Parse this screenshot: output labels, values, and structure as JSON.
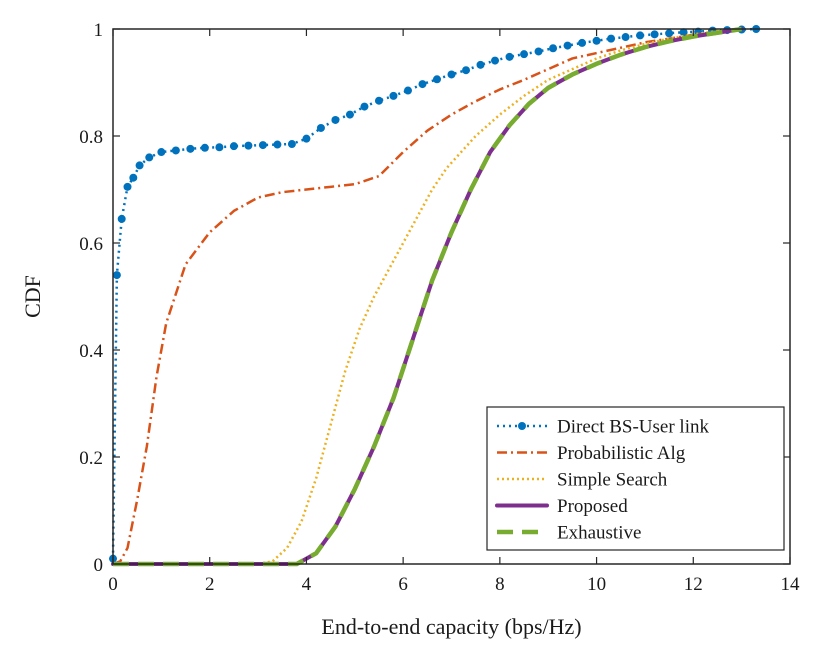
{
  "chart_data": {
    "type": "line",
    "title": "",
    "xlabel": "End-to-end capacity (bps/Hz)",
    "ylabel": "CDF",
    "xlim": [
      0,
      14
    ],
    "ylim": [
      0,
      1
    ],
    "xticks": [
      0,
      2,
      4,
      6,
      8,
      10,
      12,
      14
    ],
    "yticks": [
      0,
      0.2,
      0.4,
      0.6,
      0.8,
      1
    ],
    "xtick_labels": [
      "0",
      "2",
      "4",
      "6",
      "8",
      "10",
      "12",
      "14"
    ],
    "ytick_labels": [
      "0",
      "0.2",
      "0.4",
      "0.6",
      "0.8",
      "1"
    ],
    "grid": false,
    "legend_position": "bottom-right",
    "series": [
      {
        "name": "Direct BS-User link",
        "color": "#0072BD",
        "style": "dotted-markers",
        "x": [
          0,
          0.08,
          0.18,
          0.3,
          0.42,
          0.55,
          0.75,
          1.0,
          1.3,
          1.6,
          1.9,
          2.2,
          2.5,
          2.8,
          3.1,
          3.4,
          3.7,
          4.0,
          4.3,
          4.6,
          4.9,
          5.2,
          5.5,
          5.8,
          6.1,
          6.4,
          6.7,
          7.0,
          7.3,
          7.6,
          7.9,
          8.2,
          8.5,
          8.8,
          9.1,
          9.4,
          9.7,
          10.0,
          10.3,
          10.6,
          10.9,
          11.2,
          11.5,
          11.8,
          12.1,
          12.4,
          12.7,
          13.0,
          13.3
        ],
        "y": [
          0.01,
          0.54,
          0.645,
          0.705,
          0.722,
          0.745,
          0.76,
          0.77,
          0.773,
          0.776,
          0.778,
          0.779,
          0.781,
          0.782,
          0.783,
          0.784,
          0.785,
          0.795,
          0.815,
          0.83,
          0.84,
          0.855,
          0.866,
          0.875,
          0.885,
          0.897,
          0.906,
          0.915,
          0.923,
          0.933,
          0.941,
          0.948,
          0.953,
          0.958,
          0.964,
          0.969,
          0.974,
          0.978,
          0.982,
          0.985,
          0.988,
          0.99,
          0.992,
          0.994,
          0.995,
          0.997,
          0.998,
          0.999,
          1.0
        ]
      },
      {
        "name": "Probabilistic Alg",
        "color": "#D95319",
        "style": "dash-dot",
        "x": [
          0,
          0.15,
          0.3,
          0.5,
          0.7,
          0.9,
          1.1,
          1.5,
          2.0,
          2.5,
          3.0,
          3.5,
          4.0,
          4.5,
          5.0,
          5.5,
          6.0,
          6.5,
          7.0,
          7.5,
          8.0,
          8.5,
          9.0,
          9.5,
          10.0,
          10.5,
          11.0,
          11.5,
          12.0,
          12.5,
          13.0
        ],
        "y": [
          0,
          0.005,
          0.03,
          0.12,
          0.22,
          0.35,
          0.45,
          0.56,
          0.62,
          0.66,
          0.685,
          0.695,
          0.7,
          0.705,
          0.71,
          0.725,
          0.77,
          0.81,
          0.84,
          0.865,
          0.887,
          0.905,
          0.925,
          0.945,
          0.955,
          0.965,
          0.975,
          0.982,
          0.989,
          0.995,
          1.0
        ]
      },
      {
        "name": "Simple Search",
        "color": "#EDB120",
        "style": "dotted",
        "x": [
          0,
          3.0,
          3.3,
          3.6,
          3.9,
          4.2,
          4.5,
          4.8,
          5.1,
          5.4,
          5.7,
          6.0,
          6.3,
          6.6,
          6.9,
          7.2,
          7.5,
          8.0,
          8.5,
          9.0,
          9.5,
          10.0,
          10.5,
          11.0,
          11.5,
          12.0,
          12.5,
          13.0
        ],
        "y": [
          0,
          0,
          0.005,
          0.03,
          0.08,
          0.16,
          0.26,
          0.36,
          0.44,
          0.5,
          0.55,
          0.6,
          0.65,
          0.7,
          0.74,
          0.77,
          0.8,
          0.84,
          0.875,
          0.905,
          0.925,
          0.945,
          0.96,
          0.972,
          0.982,
          0.99,
          0.996,
          1.0
        ]
      },
      {
        "name": "Proposed",
        "color": "#7E2F8E",
        "style": "solid",
        "x": [
          0,
          3.8,
          4.2,
          4.6,
          5.0,
          5.4,
          5.8,
          6.2,
          6.6,
          7.0,
          7.4,
          7.8,
          8.2,
          8.6,
          9.0,
          9.5,
          10.0,
          10.5,
          11.0,
          11.5,
          12.0,
          12.5,
          13.0
        ],
        "y": [
          0,
          0,
          0.02,
          0.07,
          0.14,
          0.22,
          0.31,
          0.42,
          0.53,
          0.62,
          0.7,
          0.77,
          0.82,
          0.86,
          0.89,
          0.915,
          0.935,
          0.952,
          0.966,
          0.977,
          0.986,
          0.993,
          1.0
        ]
      },
      {
        "name": "Exhaustive",
        "color": "#77AC30",
        "style": "dashed",
        "x": [
          0,
          3.8,
          4.2,
          4.6,
          5.0,
          5.4,
          5.8,
          6.2,
          6.6,
          7.0,
          7.4,
          7.8,
          8.2,
          8.6,
          9.0,
          9.5,
          10.0,
          10.5,
          11.0,
          11.5,
          12.0,
          12.5,
          13.0
        ],
        "y": [
          0,
          0,
          0.02,
          0.07,
          0.14,
          0.22,
          0.31,
          0.42,
          0.53,
          0.62,
          0.7,
          0.77,
          0.82,
          0.86,
          0.89,
          0.915,
          0.935,
          0.952,
          0.966,
          0.977,
          0.986,
          0.993,
          1.0
        ]
      }
    ]
  }
}
